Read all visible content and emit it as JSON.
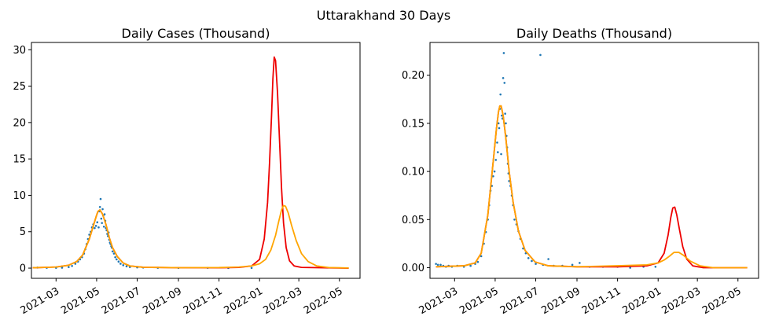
{
  "figure": {
    "suptitle": "Uttarakhand 30 Days"
  },
  "colors": {
    "observed": "#1f77b4",
    "fit_red": "#ee0000",
    "fit_orange": "#ffa500"
  },
  "chart_data": [
    {
      "type": "line",
      "title": "Daily Cases (Thousand)",
      "xlabel": "",
      "ylabel": "",
      "x_axis": "date",
      "xlim": [
        "2021-01-23",
        "2022-06-01"
      ],
      "ylim": [
        -1.4,
        31.0
      ],
      "x_ticks": [
        "2021-03",
        "2021-05",
        "2021-07",
        "2021-09",
        "2021-11",
        "2022-01",
        "2022-03",
        "2022-05"
      ],
      "y_ticks": [
        0,
        5,
        10,
        15,
        20,
        25,
        30
      ],
      "y_tick_labels": [
        "0",
        "5",
        "10",
        "15",
        "20",
        "25",
        "30"
      ],
      "scatter": {
        "points": [
          [
            "2021-02-01",
            0.08
          ],
          [
            "2021-02-15",
            0.05
          ],
          [
            "2021-03-01",
            0.04
          ],
          [
            "2021-03-10",
            0.06
          ],
          [
            "2021-03-20",
            0.15
          ],
          [
            "2021-03-25",
            0.3
          ],
          [
            "2021-03-30",
            0.6
          ],
          [
            "2021-04-03",
            0.9
          ],
          [
            "2021-04-06",
            1.2
          ],
          [
            "2021-04-09",
            1.5
          ],
          [
            "2021-04-12",
            2.0
          ],
          [
            "2021-04-14",
            2.6
          ],
          [
            "2021-04-16",
            3.3
          ],
          [
            "2021-04-18",
            4.0
          ],
          [
            "2021-04-20",
            4.6
          ],
          [
            "2021-04-22",
            5.0
          ],
          [
            "2021-04-24",
            5.6
          ],
          [
            "2021-04-26",
            6.0
          ],
          [
            "2021-04-28",
            5.5
          ],
          [
            "2021-04-30",
            5.8
          ],
          [
            "2021-05-02",
            6.3
          ],
          [
            "2021-05-04",
            5.6
          ],
          [
            "2021-05-05",
            7.8
          ],
          [
            "2021-05-06",
            8.4
          ],
          [
            "2021-05-07",
            9.5
          ],
          [
            "2021-05-08",
            6.8
          ],
          [
            "2021-05-09",
            6.2
          ],
          [
            "2021-05-10",
            8.1
          ],
          [
            "2021-05-11",
            7.2
          ],
          [
            "2021-05-12",
            5.7
          ],
          [
            "2021-05-13",
            7.4
          ],
          [
            "2021-05-14",
            6.5
          ],
          [
            "2021-05-15",
            5.5
          ],
          [
            "2021-05-16",
            5.2
          ],
          [
            "2021-05-17",
            4.7
          ],
          [
            "2021-05-18",
            4.4
          ],
          [
            "2021-05-19",
            4.9
          ],
          [
            "2021-05-20",
            3.9
          ],
          [
            "2021-05-21",
            3.5
          ],
          [
            "2021-05-22",
            3.3
          ],
          [
            "2021-05-23",
            3.0
          ],
          [
            "2021-05-24",
            2.8
          ],
          [
            "2021-05-25",
            2.3
          ],
          [
            "2021-05-27",
            2.0
          ],
          [
            "2021-05-29",
            1.5
          ],
          [
            "2021-05-31",
            1.2
          ],
          [
            "2021-06-03",
            0.9
          ],
          [
            "2021-06-06",
            0.6
          ],
          [
            "2021-06-10",
            0.4
          ],
          [
            "2021-06-15",
            0.25
          ],
          [
            "2021-06-20",
            0.15
          ],
          [
            "2021-07-01",
            0.1
          ],
          [
            "2021-07-10",
            0.08
          ],
          [
            "2021-08-01",
            0.05
          ],
          [
            "2021-09-01",
            0.03
          ],
          [
            "2021-10-15",
            0.04
          ],
          [
            "2021-11-15",
            0.02
          ],
          [
            "2021-12-20",
            0.03
          ]
        ]
      },
      "series": [
        {
          "name": "",
          "color": "#ee0000",
          "x": [
            "2021-01-25",
            "2021-03-01",
            "2021-03-20",
            "2021-04-01",
            "2021-04-10",
            "2021-04-20",
            "2021-04-25",
            "2021-04-30",
            "2021-05-03",
            "2021-05-06",
            "2021-05-10",
            "2021-05-15",
            "2021-05-20",
            "2021-05-25",
            "2021-06-01",
            "2021-06-10",
            "2021-06-20",
            "2021-07-10",
            "2021-09-01",
            "2021-11-01",
            "2021-12-01",
            "2021-12-20",
            "2022-01-01",
            "2022-01-08",
            "2022-01-13",
            "2022-01-16",
            "2022-01-19",
            "2022-01-21",
            "2022-01-23",
            "2022-01-25",
            "2022-01-28",
            "2022-01-31",
            "2022-02-03",
            "2022-02-06",
            "2022-02-10",
            "2022-02-15",
            "2022-02-22",
            "2022-03-05",
            "2022-05-15"
          ],
          "y": [
            0.05,
            0.15,
            0.4,
            0.9,
            1.8,
            4.0,
            5.5,
            7.0,
            7.8,
            8.0,
            7.4,
            6.0,
            4.2,
            2.8,
            1.6,
            0.7,
            0.3,
            0.12,
            0.06,
            0.05,
            0.1,
            0.3,
            1.2,
            4.0,
            9.0,
            14.5,
            21.0,
            26.0,
            29.0,
            28.5,
            24.0,
            17.5,
            11.0,
            6.2,
            2.8,
            1.0,
            0.3,
            0.1,
            0.0
          ]
        },
        {
          "name": "",
          "color": "#ffa500",
          "x": [
            "2021-01-25",
            "2021-03-01",
            "2021-03-20",
            "2021-04-01",
            "2021-04-10",
            "2021-04-20",
            "2021-04-25",
            "2021-04-30",
            "2021-05-03",
            "2021-05-06",
            "2021-05-10",
            "2021-05-15",
            "2021-05-20",
            "2021-05-25",
            "2021-06-01",
            "2021-06-10",
            "2021-06-20",
            "2021-07-10",
            "2021-09-01",
            "2021-11-01",
            "2021-12-01",
            "2021-12-20",
            "2022-01-01",
            "2022-01-10",
            "2022-01-18",
            "2022-01-25",
            "2022-01-30",
            "2022-02-03",
            "2022-02-06",
            "2022-02-09",
            "2022-02-13",
            "2022-02-18",
            "2022-02-25",
            "2022-03-05",
            "2022-03-15",
            "2022-03-28",
            "2022-04-15",
            "2022-05-15"
          ],
          "y": [
            0.05,
            0.15,
            0.4,
            0.9,
            1.8,
            4.0,
            5.5,
            7.0,
            7.8,
            8.0,
            7.4,
            6.0,
            4.2,
            2.8,
            1.6,
            0.7,
            0.3,
            0.12,
            0.06,
            0.08,
            0.15,
            0.3,
            0.6,
            1.2,
            2.5,
            4.5,
            6.5,
            8.0,
            8.6,
            8.5,
            7.6,
            5.9,
            3.8,
            2.0,
            0.9,
            0.3,
            0.08,
            0.02
          ]
        }
      ]
    },
    {
      "type": "line",
      "title": "Daily Deaths (Thousand)",
      "xlabel": "",
      "ylabel": "",
      "x_axis": "date",
      "xlim": [
        "2021-01-23",
        "2022-06-01"
      ],
      "ylim": [
        -0.011,
        0.234
      ],
      "x_ticks": [
        "2021-03",
        "2021-05",
        "2021-07",
        "2021-09",
        "2021-11",
        "2022-01",
        "2022-03",
        "2022-05"
      ],
      "y_ticks": [
        0.0,
        0.05,
        0.1,
        0.15,
        0.2
      ],
      "y_tick_labels": [
        "0.00",
        "0.05",
        "0.10",
        "0.15",
        "0.20"
      ],
      "scatter": {
        "points": [
          [
            "2021-02-01",
            0.004
          ],
          [
            "2021-02-04",
            0.003
          ],
          [
            "2021-02-08",
            0.003
          ],
          [
            "2021-02-12",
            0.002
          ],
          [
            "2021-02-16",
            0.001
          ],
          [
            "2021-02-20",
            0.002
          ],
          [
            "2021-02-25",
            0.001
          ],
          [
            "2021-03-05",
            0.002
          ],
          [
            "2021-03-15",
            0.001
          ],
          [
            "2021-03-25",
            0.002
          ],
          [
            "2021-04-01",
            0.004
          ],
          [
            "2021-04-05",
            0.006
          ],
          [
            "2021-04-10",
            0.012
          ],
          [
            "2021-04-14",
            0.025
          ],
          [
            "2021-04-17",
            0.037
          ],
          [
            "2021-04-20",
            0.05
          ],
          [
            "2021-04-22",
            0.065
          ],
          [
            "2021-04-24",
            0.08
          ],
          [
            "2021-04-26",
            0.085
          ],
          [
            "2021-04-28",
            0.095
          ],
          [
            "2021-04-30",
            0.1
          ],
          [
            "2021-05-02",
            0.112
          ],
          [
            "2021-05-04",
            0.13
          ],
          [
            "2021-05-05",
            0.12
          ],
          [
            "2021-05-06",
            0.15
          ],
          [
            "2021-05-07",
            0.145
          ],
          [
            "2021-05-08",
            0.165
          ],
          [
            "2021-05-09",
            0.18
          ],
          [
            "2021-05-10",
            0.118
          ],
          [
            "2021-05-11",
            0.158
          ],
          [
            "2021-05-12",
            0.155
          ],
          [
            "2021-05-13",
            0.197
          ],
          [
            "2021-05-14",
            0.223
          ],
          [
            "2021-05-15",
            0.192
          ],
          [
            "2021-05-16",
            0.16
          ],
          [
            "2021-05-17",
            0.15
          ],
          [
            "2021-05-18",
            0.137
          ],
          [
            "2021-05-19",
            0.125
          ],
          [
            "2021-05-20",
            0.108
          ],
          [
            "2021-05-21",
            0.098
          ],
          [
            "2021-05-22",
            0.09
          ],
          [
            "2021-05-24",
            0.085
          ],
          [
            "2021-05-26",
            0.075
          ],
          [
            "2021-05-28",
            0.065
          ],
          [
            "2021-05-30",
            0.05
          ],
          [
            "2021-06-02",
            0.045
          ],
          [
            "2021-06-05",
            0.038
          ],
          [
            "2021-06-08",
            0.03
          ],
          [
            "2021-06-12",
            0.02
          ],
          [
            "2021-06-16",
            0.015
          ],
          [
            "2021-06-20",
            0.01
          ],
          [
            "2021-06-25",
            0.007
          ],
          [
            "2021-07-01",
            0.004
          ],
          [
            "2021-07-08",
            0.221
          ],
          [
            "2021-07-12",
            0.003
          ],
          [
            "2021-07-20",
            0.009
          ],
          [
            "2021-07-28",
            0.002
          ],
          [
            "2021-08-10",
            0.002
          ],
          [
            "2021-08-25",
            0.003
          ],
          [
            "2021-09-05",
            0.005
          ],
          [
            "2021-09-20",
            0.001
          ],
          [
            "2021-10-10",
            0.001
          ],
          [
            "2021-11-01",
            0.001
          ],
          [
            "2021-11-20",
            0.0
          ],
          [
            "2021-12-10",
            0.001
          ],
          [
            "2021-12-28",
            0.001
          ]
        ]
      },
      "series": [
        {
          "name": "",
          "color": "#ee0000",
          "x": [
            "2021-02-01",
            "2021-03-15",
            "2021-04-01",
            "2021-04-10",
            "2021-04-20",
            "2021-04-28",
            "2021-05-03",
            "2021-05-06",
            "2021-05-08",
            "2021-05-10",
            "2021-05-13",
            "2021-05-17",
            "2021-05-22",
            "2021-05-28",
            "2021-06-05",
            "2021-06-15",
            "2021-06-30",
            "2021-07-20",
            "2021-09-01",
            "2021-11-01",
            "2021-12-15",
            "2022-01-01",
            "2022-01-10",
            "2022-01-16",
            "2022-01-20",
            "2022-01-23",
            "2022-01-26",
            "2022-01-29",
            "2022-02-02",
            "2022-02-07",
            "2022-02-13",
            "2022-02-22",
            "2022-03-10",
            "2022-05-15"
          ],
          "y": [
            0.001,
            0.002,
            0.005,
            0.015,
            0.055,
            0.11,
            0.145,
            0.162,
            0.168,
            0.168,
            0.158,
            0.135,
            0.1,
            0.068,
            0.038,
            0.018,
            0.006,
            0.002,
            0.001,
            0.001,
            0.002,
            0.005,
            0.015,
            0.034,
            0.052,
            0.062,
            0.063,
            0.055,
            0.04,
            0.022,
            0.009,
            0.002,
            0.0,
            0.0
          ]
        },
        {
          "name": "",
          "color": "#ffa500",
          "x": [
            "2021-02-01",
            "2021-03-15",
            "2021-04-01",
            "2021-04-10",
            "2021-04-20",
            "2021-04-28",
            "2021-05-03",
            "2021-05-06",
            "2021-05-08",
            "2021-05-10",
            "2021-05-13",
            "2021-05-17",
            "2021-05-22",
            "2021-05-28",
            "2021-06-05",
            "2021-06-15",
            "2021-06-30",
            "2021-07-20",
            "2021-09-01",
            "2021-11-01",
            "2021-12-15",
            "2022-01-01",
            "2022-01-10",
            "2022-01-18",
            "2022-01-25",
            "2022-02-01",
            "2022-02-08",
            "2022-02-18",
            "2022-03-05",
            "2022-03-25",
            "2022-05-15"
          ],
          "y": [
            0.001,
            0.002,
            0.005,
            0.015,
            0.055,
            0.11,
            0.145,
            0.162,
            0.168,
            0.168,
            0.158,
            0.135,
            0.1,
            0.068,
            0.038,
            0.018,
            0.006,
            0.002,
            0.001,
            0.002,
            0.003,
            0.005,
            0.008,
            0.012,
            0.016,
            0.016,
            0.013,
            0.007,
            0.002,
            0.0,
            0.0
          ]
        }
      ]
    }
  ]
}
